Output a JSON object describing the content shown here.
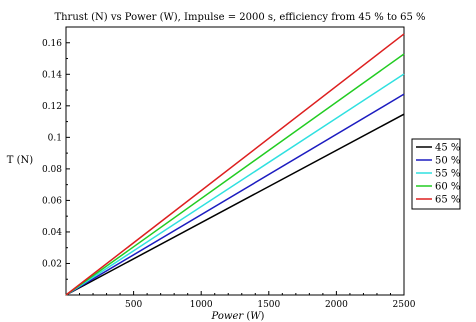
{
  "chart_data": {
    "type": "line",
    "title": "Thrust (N) vs Power (W), Impulse = 2000 s, efficiency from 45 % to 65 %",
    "xlabel": "Power",
    "xlabel_unit": "W",
    "ylabel": "T (N)",
    "xlim": [
      0,
      2500
    ],
    "ylim": [
      0,
      0.17
    ],
    "x_ticks": [
      500,
      1000,
      1500,
      2000,
      2500
    ],
    "y_ticks": [
      0.02,
      0.04,
      0.06,
      0.08,
      0.1,
      0.12,
      0.14,
      0.16
    ],
    "grid": false,
    "legend_position": "right",
    "x": [
      0,
      2500
    ],
    "series": [
      {
        "name": "45 %",
        "color": "#000000",
        "values": [
          0.0,
          0.1147
        ]
      },
      {
        "name": "50 %",
        "color": "#1c1cc0",
        "values": [
          0.0,
          0.1274
        ]
      },
      {
        "name": "55 %",
        "color": "#2fe0e0",
        "values": [
          0.0,
          0.1402
        ]
      },
      {
        "name": "60 %",
        "color": "#22cc22",
        "values": [
          0.0,
          0.1529
        ]
      },
      {
        "name": "65 %",
        "color": "#dd1f1f",
        "values": [
          0.0,
          0.1656
        ]
      }
    ]
  }
}
